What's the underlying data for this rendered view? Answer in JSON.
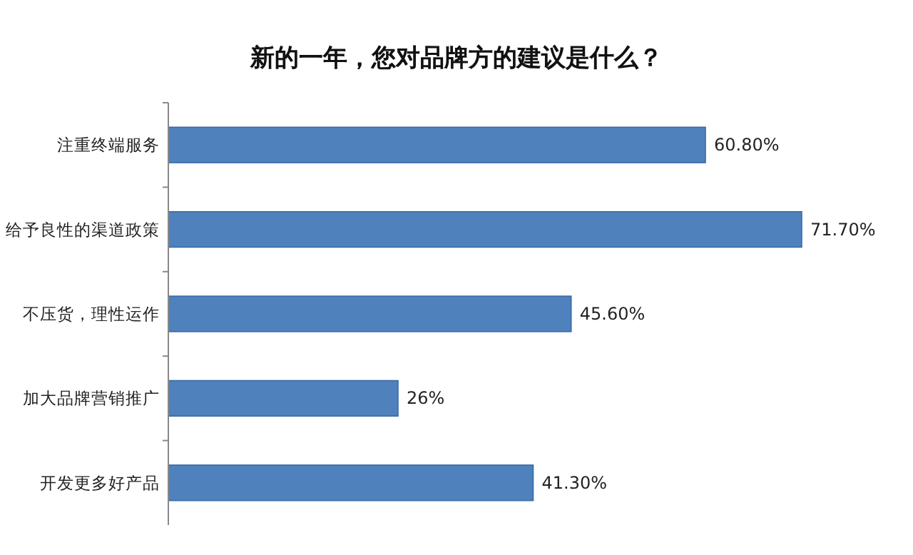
{
  "chart_data": {
    "type": "bar",
    "orientation": "horizontal",
    "title": "新的一年，您对品牌方的建议是什么？",
    "categories": [
      "注重终端服务",
      "给予良性的渠道政策",
      "不压货，理性运作",
      "加大品牌营销推广",
      "开发更多好产品"
    ],
    "values": [
      60.8,
      71.7,
      45.6,
      26,
      41.3
    ],
    "value_labels": [
      "60.80%",
      "71.70%",
      "45.60%",
      "26%",
      "41.30%"
    ],
    "color": "#4f81bd"
  }
}
